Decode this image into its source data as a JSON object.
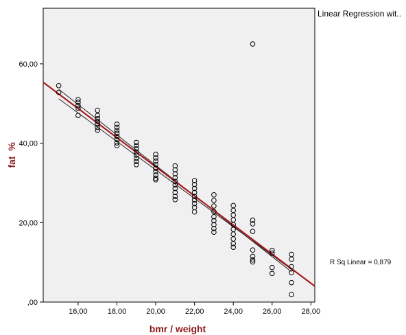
{
  "legend": {
    "title": "Linear Regression wit..",
    "r_sq_label": "R Sq Linear = 0,879"
  },
  "colors": {
    "plot_background": "#f0f0f0",
    "fit_line": "#a51c22",
    "ci_line": "#222222",
    "axis_title": "#8b1a1a",
    "marker_stroke": "#000000"
  },
  "chart_data": {
    "type": "scatter",
    "xlabel": "bmr / weight",
    "ylabel": "fat  %",
    "xlim": [
      14.2,
      28.2
    ],
    "ylim": [
      0,
      74
    ],
    "x_ticks": [
      16,
      18,
      20,
      22,
      24,
      26,
      28
    ],
    "x_tick_labels": [
      "16,00",
      "18,00",
      "20,00",
      "22,00",
      "24,00",
      "26,00",
      "28,00"
    ],
    "y_ticks": [
      0,
      20,
      40,
      60
    ],
    "y_tick_labels": [
      ",00",
      "20,00",
      "40,00",
      "60,00"
    ],
    "grid": false,
    "fit_line": {
      "intercept": 107.43,
      "slope": -3.668,
      "x_range": [
        14.2,
        28.2
      ]
    },
    "ci_lines": [
      {
        "x": [
          15.0,
          27.0
        ],
        "y": [
          53.6,
          7.6
        ]
      },
      {
        "x": [
          15.0,
          27.0
        ],
        "y": [
          51.2,
          8.2
        ]
      }
    ],
    "points": [
      [
        15,
        54.5
      ],
      [
        15,
        52.8
      ],
      [
        16,
        51.0
      ],
      [
        16,
        50.3
      ],
      [
        16,
        49.5
      ],
      [
        16,
        48.8
      ],
      [
        16,
        47.0
      ],
      [
        17,
        48.3
      ],
      [
        17,
        47.0
      ],
      [
        17,
        46.2
      ],
      [
        17,
        45.5
      ],
      [
        17,
        44.8
      ],
      [
        17,
        44.0
      ],
      [
        17,
        43.3
      ],
      [
        18,
        44.8
      ],
      [
        18,
        44.0
      ],
      [
        18,
        43.2
      ],
      [
        18,
        42.5
      ],
      [
        18,
        41.7
      ],
      [
        18,
        40.9
      ],
      [
        18,
        40.1
      ],
      [
        18,
        39.4
      ],
      [
        19,
        40.2
      ],
      [
        19,
        39.4
      ],
      [
        19,
        38.6
      ],
      [
        19,
        37.8
      ],
      [
        19,
        37.0
      ],
      [
        19,
        36.2
      ],
      [
        19,
        35.4
      ],
      [
        19,
        34.6
      ],
      [
        20,
        37.2
      ],
      [
        20,
        36.3
      ],
      [
        20,
        35.5
      ],
      [
        20,
        34.6
      ],
      [
        20,
        33.7
      ],
      [
        20,
        32.9
      ],
      [
        20,
        32.0
      ],
      [
        20,
        31.2
      ],
      [
        20,
        30.8
      ],
      [
        21,
        34.3
      ],
      [
        21,
        33.3
      ],
      [
        21,
        32.3
      ],
      [
        21,
        31.3
      ],
      [
        21,
        30.4
      ],
      [
        21,
        29.5
      ],
      [
        21,
        28.6
      ],
      [
        21,
        27.6
      ],
      [
        21,
        26.6
      ],
      [
        21,
        25.8
      ],
      [
        22,
        30.6
      ],
      [
        22,
        29.6
      ],
      [
        22,
        28.6
      ],
      [
        22,
        27.6
      ],
      [
        22,
        26.6
      ],
      [
        22,
        25.7
      ],
      [
        22,
        24.8
      ],
      [
        22,
        23.8
      ],
      [
        22,
        22.7
      ],
      [
        23,
        27.0
      ],
      [
        23,
        25.6
      ],
      [
        23,
        24.2
      ],
      [
        23,
        22.8
      ],
      [
        23,
        21.5
      ],
      [
        23,
        20.5
      ],
      [
        23,
        19.5
      ],
      [
        23,
        18.5
      ],
      [
        23,
        17.6
      ],
      [
        24,
        24.3
      ],
      [
        24,
        23.1
      ],
      [
        24,
        21.9
      ],
      [
        24,
        20.7
      ],
      [
        24,
        19.5
      ],
      [
        24,
        18.3
      ],
      [
        24,
        17.1
      ],
      [
        24,
        15.9
      ],
      [
        24,
        14.7
      ],
      [
        24,
        13.8
      ],
      [
        25,
        65.0
      ],
      [
        25,
        20.6
      ],
      [
        25,
        19.7
      ],
      [
        25,
        17.8
      ],
      [
        25,
        13.1
      ],
      [
        25,
        11.5
      ],
      [
        25,
        10.6
      ],
      [
        25,
        10.1
      ],
      [
        26,
        13.0
      ],
      [
        26,
        12.3
      ],
      [
        26,
        8.7
      ],
      [
        26,
        7.2
      ],
      [
        27,
        12.0
      ],
      [
        27,
        10.8
      ],
      [
        27,
        8.9
      ],
      [
        27,
        7.4
      ],
      [
        27,
        4.9
      ],
      [
        27,
        1.9
      ]
    ]
  }
}
